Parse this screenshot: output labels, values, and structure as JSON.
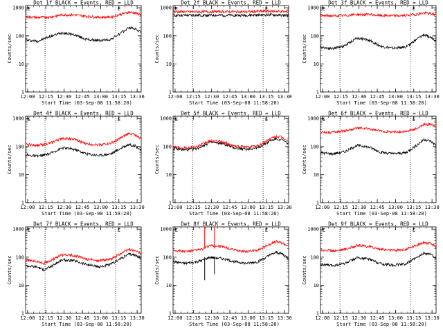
{
  "colors": {
    "events": "#000000",
    "lld": "#ff0000",
    "axis": "#000000",
    "background": "#ffffff"
  },
  "x_ticks": [
    "12:00",
    "12:15",
    "12:30",
    "12:45",
    "13:00",
    "13:15",
    "13:30"
  ],
  "y_ticks": [
    "1",
    "10",
    "100",
    "1000"
  ],
  "marker_label": "E",
  "chart_data": [
    {
      "type": "line",
      "title": "Det 1f BLACK = Events, RED = LLD",
      "xlabel": "Start Time (03-Sep-08 11:58:20)",
      "ylabel": "Counts/sec",
      "log_y": true,
      "ylim": [
        1,
        1200
      ],
      "xlim_minutes": [
        0,
        95
      ],
      "vlines_minutes": [
        16,
        74
      ],
      "markers": [
        {
          "label": "E",
          "minute": 1
        },
        {
          "label": "E",
          "minute": 75
        }
      ],
      "series": [
        {
          "name": "Events",
          "color": "#000000",
          "x": [
            0,
            10,
            20,
            30,
            40,
            50,
            60,
            70,
            80,
            85,
            90,
            95
          ],
          "y": [
            70,
            65,
            95,
            130,
            110,
            75,
            68,
            75,
            140,
            200,
            180,
            130
          ]
        },
        {
          "name": "LLD",
          "color": "#ff0000",
          "x": [
            0,
            10,
            20,
            30,
            40,
            50,
            60,
            70,
            80,
            85,
            90,
            95
          ],
          "y": [
            480,
            450,
            470,
            560,
            560,
            500,
            460,
            470,
            620,
            700,
            650,
            560
          ]
        }
      ]
    },
    {
      "type": "line",
      "title": "Det 2f BLACK = Events, RED = LLD",
      "xlabel": "Start Time (03-Sep-08 11:58:20)",
      "ylabel": "Counts/sec",
      "log_y": true,
      "ylim": [
        1,
        1200
      ],
      "xlim_minutes": [
        0,
        95
      ],
      "vlines_minutes": [
        16,
        74
      ],
      "markers": [
        {
          "label": "E",
          "minute": 1
        },
        {
          "label": "E",
          "minute": 75
        }
      ],
      "series": [
        {
          "name": "Events",
          "color": "#000000",
          "x": [
            0,
            20,
            40,
            60,
            80,
            95
          ],
          "y": [
            540,
            540,
            540,
            540,
            560,
            530
          ]
        },
        {
          "name": "LLD",
          "color": "#ff0000",
          "x": [
            0,
            20,
            40,
            60,
            80,
            95
          ],
          "y": [
            720,
            720,
            730,
            720,
            760,
            720
          ]
        }
      ]
    },
    {
      "type": "line",
      "title": "Det 3f BLACK = Events, RED = LLD",
      "xlabel": "Start Time (03-Sep-08 11:58:20)",
      "ylabel": "Counts/sec",
      "log_y": true,
      "ylim": [
        1,
        1200
      ],
      "xlim_minutes": [
        0,
        95
      ],
      "vlines_minutes": [
        16,
        74
      ],
      "markers": [
        {
          "label": "E",
          "minute": 1
        },
        {
          "label": "E",
          "minute": 75
        }
      ],
      "series": [
        {
          "name": "Events",
          "color": "#000000",
          "x": [
            0,
            10,
            20,
            30,
            40,
            50,
            60,
            70,
            80,
            85,
            90,
            95
          ],
          "y": [
            40,
            35,
            45,
            85,
            70,
            42,
            36,
            40,
            80,
            110,
            90,
            70
          ]
        },
        {
          "name": "LLD",
          "color": "#ff0000",
          "x": [
            0,
            10,
            20,
            30,
            40,
            50,
            60,
            70,
            80,
            85,
            90,
            95
          ],
          "y": [
            520,
            520,
            530,
            580,
            570,
            530,
            520,
            530,
            600,
            650,
            620,
            560
          ]
        }
      ]
    },
    {
      "type": "line",
      "title": "Det 4f BLACK = Events, RED = LLD",
      "xlabel": "Start Time (03-Sep-08 11:58:20)",
      "ylabel": "Counts/sec",
      "log_y": true,
      "ylim": [
        1,
        1200
      ],
      "xlim_minutes": [
        0,
        95
      ],
      "vlines_minutes": [
        16,
        74
      ],
      "markers": [
        {
          "label": "E",
          "minute": 1
        },
        {
          "label": "E",
          "minute": 75
        }
      ],
      "series": [
        {
          "name": "Events",
          "color": "#000000",
          "x": [
            0,
            10,
            20,
            30,
            40,
            50,
            60,
            70,
            80,
            85,
            90,
            95
          ],
          "y": [
            50,
            45,
            55,
            90,
            80,
            55,
            48,
            55,
            95,
            120,
            105,
            75
          ]
        },
        {
          "name": "LLD",
          "color": "#ff0000",
          "x": [
            0,
            10,
            20,
            30,
            40,
            50,
            60,
            70,
            80,
            85,
            90,
            95
          ],
          "y": [
            120,
            110,
            130,
            200,
            180,
            125,
            115,
            130,
            220,
            300,
            260,
            190
          ]
        }
      ]
    },
    {
      "type": "line",
      "title": "Det 5f BLACK = Events, RED = LLD",
      "xlabel": "Start Time (03-Sep-08 11:58:20)",
      "ylabel": "Counts/sec",
      "log_y": true,
      "ylim": [
        1,
        1200
      ],
      "xlim_minutes": [
        0,
        95
      ],
      "vlines_minutes": [
        16,
        74
      ],
      "markers": [
        {
          "label": "E",
          "minute": 1
        },
        {
          "label": "E",
          "minute": 75
        }
      ],
      "series": [
        {
          "name": "Events",
          "color": "#000000",
          "x": [
            0,
            10,
            20,
            30,
            40,
            50,
            60,
            70,
            80,
            85,
            90,
            95
          ],
          "y": [
            85,
            75,
            85,
            140,
            130,
            90,
            80,
            90,
            160,
            190,
            170,
            120
          ]
        },
        {
          "name": "LLD",
          "color": "#ff0000",
          "x": [
            0,
            10,
            20,
            30,
            40,
            50,
            60,
            70,
            80,
            85,
            90,
            95
          ],
          "y": [
            100,
            90,
            100,
            160,
            150,
            105,
            95,
            105,
            190,
            230,
            210,
            150
          ]
        }
      ]
    },
    {
      "type": "line",
      "title": "Det 6f BLACK = Events, RED = LLD",
      "xlabel": "Start Time (03-Sep-08 11:58:20)",
      "ylabel": "Counts/sec",
      "log_y": true,
      "ylim": [
        1,
        1200
      ],
      "xlim_minutes": [
        0,
        95
      ],
      "vlines_minutes": [
        16,
        74
      ],
      "markers": [
        {
          "label": "E",
          "minute": 1
        },
        {
          "label": "E",
          "minute": 75
        }
      ],
      "series": [
        {
          "name": "Events",
          "color": "#000000",
          "x": [
            0,
            10,
            20,
            30,
            40,
            50,
            60,
            70,
            80,
            85,
            90,
            95
          ],
          "y": [
            60,
            55,
            65,
            110,
            95,
            62,
            55,
            60,
            120,
            180,
            160,
            110
          ]
        },
        {
          "name": "LLD",
          "color": "#ff0000",
          "x": [
            0,
            10,
            20,
            30,
            40,
            50,
            60,
            70,
            80,
            85,
            90,
            95
          ],
          "y": [
            320,
            320,
            360,
            450,
            420,
            350,
            330,
            340,
            450,
            600,
            620,
            520
          ]
        }
      ]
    },
    {
      "type": "line",
      "title": "Det 7f BLACK = Events, RED = LLD",
      "xlabel": "Start Time (03-Sep-08 11:58:20)",
      "ylabel": "Counts/sec",
      "log_y": true,
      "ylim": [
        1,
        1200
      ],
      "xlim_minutes": [
        0,
        95
      ],
      "vlines_minutes": [
        16,
        74
      ],
      "markers": [
        {
          "label": "E",
          "minute": 1
        },
        {
          "label": "E",
          "minute": 75
        }
      ],
      "series": [
        {
          "name": "Events",
          "color": "#000000",
          "x": [
            0,
            10,
            15,
            20,
            30,
            40,
            50,
            60,
            70,
            80,
            85,
            90,
            95
          ],
          "y": [
            50,
            45,
            35,
            45,
            80,
            75,
            55,
            45,
            55,
            100,
            130,
            120,
            90
          ]
        },
        {
          "name": "LLD",
          "color": "#ff0000",
          "x": [
            0,
            10,
            15,
            20,
            30,
            40,
            50,
            60,
            70,
            80,
            85,
            90,
            95
          ],
          "y": [
            80,
            70,
            60,
            75,
            120,
            115,
            85,
            75,
            85,
            150,
            190,
            170,
            130
          ]
        }
      ]
    },
    {
      "type": "line",
      "title": "Det 8f BLACK = Events, RED = LLD",
      "xlabel": "Start Time (03-Sep-08 11:58:20)",
      "ylabel": "Counts/sec",
      "log_y": true,
      "ylim": [
        1,
        1200
      ],
      "xlim_minutes": [
        0,
        95
      ],
      "vlines_minutes": [
        16,
        74
      ],
      "markers": [
        {
          "label": "E",
          "minute": 1
        },
        {
          "label": "E",
          "minute": 75
        }
      ],
      "series": [
        {
          "name": "Events",
          "color": "#000000",
          "x": [
            0,
            10,
            20,
            25,
            30,
            40,
            50,
            60,
            70,
            80,
            85,
            90,
            95
          ],
          "y": [
            70,
            60,
            70,
            80,
            100,
            90,
            70,
            60,
            70,
            120,
            150,
            130,
            90
          ]
        },
        {
          "name": "LLD",
          "color": "#ff0000",
          "x": [
            0,
            10,
            20,
            25,
            30,
            40,
            50,
            60,
            70,
            80,
            85,
            90,
            95
          ],
          "y": [
            180,
            160,
            180,
            200,
            260,
            240,
            180,
            160,
            180,
            300,
            360,
            320,
            250
          ]
        }
      ],
      "spikes": [
        {
          "minute": 26,
          "y_from": 15,
          "y_to": 100,
          "color": "#000000"
        },
        {
          "minute": 26,
          "y_from": 200,
          "y_to": 1200,
          "color": "#ff0000"
        },
        {
          "minute": 34,
          "y_from": 25,
          "y_to": 100,
          "color": "#000000"
        },
        {
          "minute": 34,
          "y_from": 200,
          "y_to": 1200,
          "color": "#ff0000"
        }
      ]
    },
    {
      "type": "line",
      "title": "Det 9f BLACK = Events, RED = LLD",
      "xlabel": "Start Time (03-Sep-08 11:58:20)",
      "ylabel": "Counts/sec",
      "log_y": true,
      "ylim": [
        1,
        1200
      ],
      "xlim_minutes": [
        0,
        95
      ],
      "vlines_minutes": [
        16,
        74
      ],
      "markers": [
        {
          "label": "E",
          "minute": 1
        },
        {
          "label": "E",
          "minute": 75
        }
      ],
      "series": [
        {
          "name": "Events",
          "color": "#000000",
          "x": [
            0,
            10,
            20,
            30,
            40,
            50,
            60,
            70,
            80,
            85,
            90,
            95
          ],
          "y": [
            55,
            50,
            60,
            95,
            85,
            58,
            52,
            58,
            100,
            140,
            130,
            95
          ]
        },
        {
          "name": "LLD",
          "color": "#ff0000",
          "x": [
            0,
            10,
            20,
            30,
            40,
            50,
            60,
            70,
            80,
            85,
            90,
            95
          ],
          "y": [
            180,
            170,
            190,
            260,
            240,
            190,
            175,
            190,
            280,
            330,
            310,
            240
          ]
        }
      ]
    }
  ]
}
